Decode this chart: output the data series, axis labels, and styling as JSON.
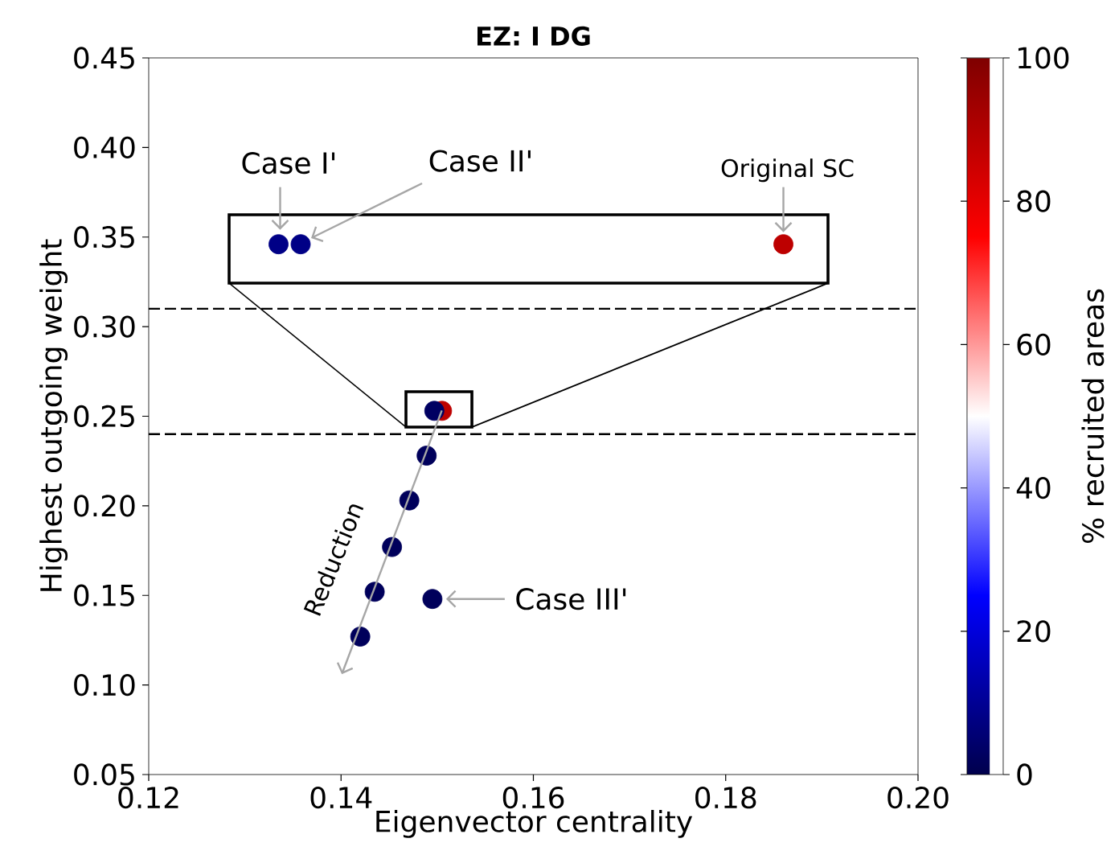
{
  "chart_data": {
    "type": "scatter",
    "title": "EZ: I DG",
    "xlabel": "Eigenvector centrality",
    "ylabel": "Highest outgoing weight",
    "clabel": "% recruited areas",
    "xlim": [
      0.12,
      0.2
    ],
    "ylim": [
      0.05,
      0.45
    ],
    "xticks": [
      0.12,
      0.14,
      0.16,
      0.18,
      {
        "value": 0.2,
        "label": "0.20"
      }
    ],
    "yticks": [
      0.05,
      {
        "value": 0.1,
        "label": "0.10"
      },
      0.15,
      {
        "value": 0.2,
        "label": "0.20"
      },
      0.25,
      {
        "value": 0.3,
        "label": "0.30"
      },
      0.35,
      {
        "value": 0.4,
        "label": "0.40"
      },
      0.45
    ],
    "clim": [
      0,
      100
    ],
    "cticks": [
      0,
      20,
      40,
      60,
      80,
      100
    ],
    "marker": "circle",
    "grid": false,
    "series": [
      {
        "x": [
          0.1505,
          0.1497,
          0.1489,
          0.1471,
          0.1453,
          0.1435,
          0.142,
          0.1495
        ],
        "values": [
          0.253,
          0.253,
          0.228,
          0.203,
          0.177,
          0.152,
          0.127,
          0.148
        ],
        "cvalues": [
          88,
          3,
          2,
          2,
          2,
          2,
          2,
          2
        ],
        "colors": [
          "#bd0000",
          "#000062",
          "#00005b",
          "#00005b",
          "#00005b",
          "#00005b",
          "#00005b",
          "#00005b"
        ]
      },
      {
        "x": [
          0.1335,
          0.1358,
          0.186
        ],
        "values": [
          0.346,
          0.346,
          0.346
        ],
        "cvalues": [
          8,
          8,
          88
        ],
        "colors": [
          "#000086",
          "#000086",
          "#bd0000"
        ]
      }
    ],
    "ref_lines": [
      {
        "axis": "y",
        "value": 0.31,
        "line_style": "dashed",
        "color": "#000000"
      },
      {
        "axis": "y",
        "value": 0.24,
        "line_style": "dashed",
        "color": "#000000"
      }
    ],
    "annotations": [
      {
        "text": "Case I'",
        "x": 0.1335,
        "y": 0.346
      },
      "Case II'",
      {
        "text": "Original SC",
        "x": 0.186,
        "y": 0.346
      },
      {
        "text": "Case III'",
        "x": 0.1495,
        "y": 0.148
      },
      "Reduction"
    ]
  }
}
